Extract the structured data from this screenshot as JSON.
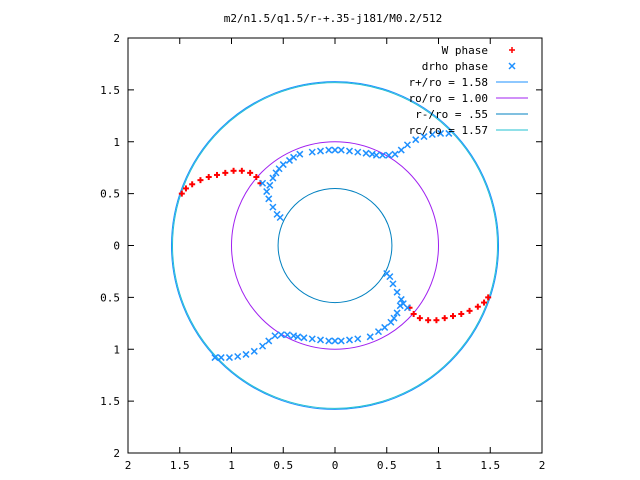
{
  "chart_data": {
    "type": "scatter",
    "title": "m2/n1.5/q1.5/r-+.35-j181/M0.2/512",
    "xlim": [
      -2,
      2
    ],
    "ylim": [
      -2,
      2
    ],
    "x_tick_values": [
      -2,
      -1.5,
      -1,
      -0.5,
      0,
      0.5,
      1,
      1.5,
      2
    ],
    "x_tick_labels": [
      "2",
      "1.5",
      "1",
      "0.5",
      "0",
      "0.5",
      "1",
      "1.5",
      "2"
    ],
    "y_tick_values": [
      2,
      1.5,
      1,
      0.5,
      0,
      -0.5,
      -1,
      -1.5,
      -2
    ],
    "y_tick_labels": [
      "2",
      "1.5",
      "1",
      "0.5",
      "0",
      "0.5",
      "1",
      "1.5",
      "2"
    ],
    "grid": false,
    "legend_position": "top-right",
    "series": [
      {
        "name": "W phase",
        "marker": "plus",
        "color": "#ff0000",
        "points": [
          [
            -1.48,
            0.5
          ],
          [
            -1.44,
            0.55
          ],
          [
            -1.38,
            0.59
          ],
          [
            -1.3,
            0.63
          ],
          [
            -1.22,
            0.66
          ],
          [
            -1.14,
            0.68
          ],
          [
            -1.06,
            0.7
          ],
          [
            -0.98,
            0.72
          ],
          [
            -0.9,
            0.72
          ],
          [
            -0.82,
            0.7
          ],
          [
            -0.76,
            0.66
          ],
          [
            -0.72,
            0.6
          ],
          [
            1.48,
            -0.5
          ],
          [
            1.44,
            -0.55
          ],
          [
            1.38,
            -0.59
          ],
          [
            1.3,
            -0.63
          ],
          [
            1.22,
            -0.66
          ],
          [
            1.14,
            -0.68
          ],
          [
            1.06,
            -0.7
          ],
          [
            0.98,
            -0.72
          ],
          [
            0.9,
            -0.72
          ],
          [
            0.82,
            -0.7
          ],
          [
            0.76,
            -0.66
          ],
          [
            0.72,
            -0.6
          ]
        ]
      },
      {
        "name": "drho phase",
        "marker": "cross",
        "color": "#1e90ff",
        "points": [
          [
            -0.7,
            0.6
          ],
          [
            -0.66,
            0.52
          ],
          [
            -0.64,
            0.45
          ],
          [
            -0.6,
            0.37
          ],
          [
            -0.56,
            0.3
          ],
          [
            -0.53,
            0.27
          ],
          [
            -0.63,
            0.58
          ],
          [
            -0.6,
            0.65
          ],
          [
            -0.57,
            0.7
          ],
          [
            -0.54,
            0.74
          ],
          [
            -0.5,
            0.78
          ],
          [
            -0.44,
            0.82
          ],
          [
            -0.4,
            0.85
          ],
          [
            -0.34,
            0.88
          ],
          [
            -0.22,
            0.9
          ],
          [
            -0.14,
            0.91
          ],
          [
            -0.06,
            0.92
          ],
          [
            0.0,
            0.92
          ],
          [
            0.06,
            0.92
          ],
          [
            0.14,
            0.91
          ],
          [
            0.22,
            0.9
          ],
          [
            0.3,
            0.89
          ],
          [
            0.36,
            0.88
          ],
          [
            0.4,
            0.87
          ],
          [
            0.46,
            0.87
          ],
          [
            0.52,
            0.87
          ],
          [
            0.58,
            0.88
          ],
          [
            0.64,
            0.92
          ],
          [
            0.7,
            0.97
          ],
          [
            0.78,
            1.02
          ],
          [
            0.86,
            1.05
          ],
          [
            0.94,
            1.07
          ],
          [
            1.02,
            1.08
          ],
          [
            1.1,
            1.08
          ],
          [
            0.5,
            -0.27
          ],
          [
            0.53,
            -0.3
          ],
          [
            0.56,
            -0.37
          ],
          [
            0.6,
            -0.45
          ],
          [
            0.64,
            -0.52
          ],
          [
            0.66,
            -0.56
          ],
          [
            0.7,
            -0.6
          ],
          [
            0.63,
            -0.58
          ],
          [
            0.6,
            -0.65
          ],
          [
            0.57,
            -0.7
          ],
          [
            0.54,
            -0.74
          ],
          [
            0.48,
            -0.79
          ],
          [
            0.42,
            -0.83
          ],
          [
            0.34,
            -0.88
          ],
          [
            0.22,
            -0.9
          ],
          [
            0.14,
            -0.91
          ],
          [
            0.06,
            -0.92
          ],
          [
            0.0,
            -0.92
          ],
          [
            -0.06,
            -0.92
          ],
          [
            -0.14,
            -0.91
          ],
          [
            -0.22,
            -0.9
          ],
          [
            -0.3,
            -0.89
          ],
          [
            -0.36,
            -0.88
          ],
          [
            -0.4,
            -0.87
          ],
          [
            -0.46,
            -0.86
          ],
          [
            -0.52,
            -0.86
          ],
          [
            -0.58,
            -0.87
          ],
          [
            -0.64,
            -0.92
          ],
          [
            -0.7,
            -0.97
          ],
          [
            -0.78,
            -1.02
          ],
          [
            -0.86,
            -1.05
          ],
          [
            -0.94,
            -1.07
          ],
          [
            -1.02,
            -1.08
          ],
          [
            -1.1,
            -1.08
          ],
          [
            -1.16,
            -1.08
          ]
        ]
      },
      {
        "name": "r+/ro = 1.58",
        "type": "circle",
        "radius": 1.58,
        "color": "#1e90ff"
      },
      {
        "name": "ro/ro = 1.00",
        "type": "circle",
        "radius": 1.0,
        "color": "#a020f0"
      },
      {
        "name": "r-/ro = .55",
        "type": "circle",
        "radius": 0.55,
        "color": "#0080c0"
      },
      {
        "name": "rc/ro = 1.57",
        "type": "circle",
        "radius": 1.57,
        "color": "#20c0d0"
      }
    ]
  }
}
